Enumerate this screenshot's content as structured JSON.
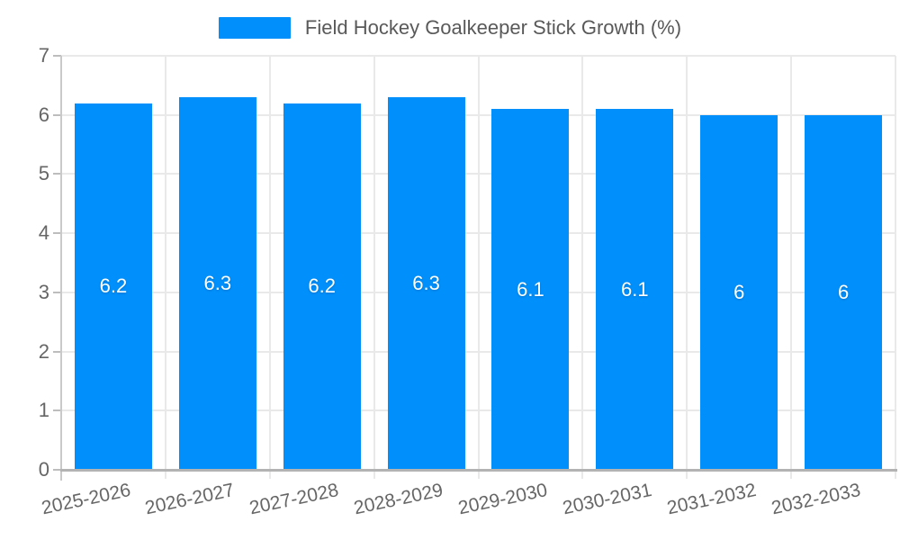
{
  "chart_data": {
    "type": "bar",
    "title": "Field Hockey Goalkeeper Stick Growth (%)",
    "categories": [
      "2025-2026",
      "2026-2027",
      "2027-2028",
      "2028-2029",
      "2029-2030",
      "2030-2031",
      "2031-2032",
      "2032-2033"
    ],
    "values": [
      6.2,
      6.3,
      6.2,
      6.3,
      6.1,
      6.1,
      6,
      6
    ],
    "data_labels": [
      "6.2",
      "6.3",
      "6.2",
      "6.3",
      "6.1",
      "6.1",
      "6",
      "6"
    ],
    "xlabel": "",
    "ylabel": "",
    "ylim": [
      0,
      7
    ],
    "yticks": [
      0,
      1,
      2,
      3,
      4,
      5,
      6,
      7
    ],
    "grid": true,
    "legend_position": "top",
    "colors": {
      "bar": "#008FFB",
      "data_label": "#ffffff",
      "axis_text": "#666666",
      "legend_text": "#595959",
      "gridline": "#e9e9e9",
      "axis_line": "#b3b3b3"
    }
  }
}
